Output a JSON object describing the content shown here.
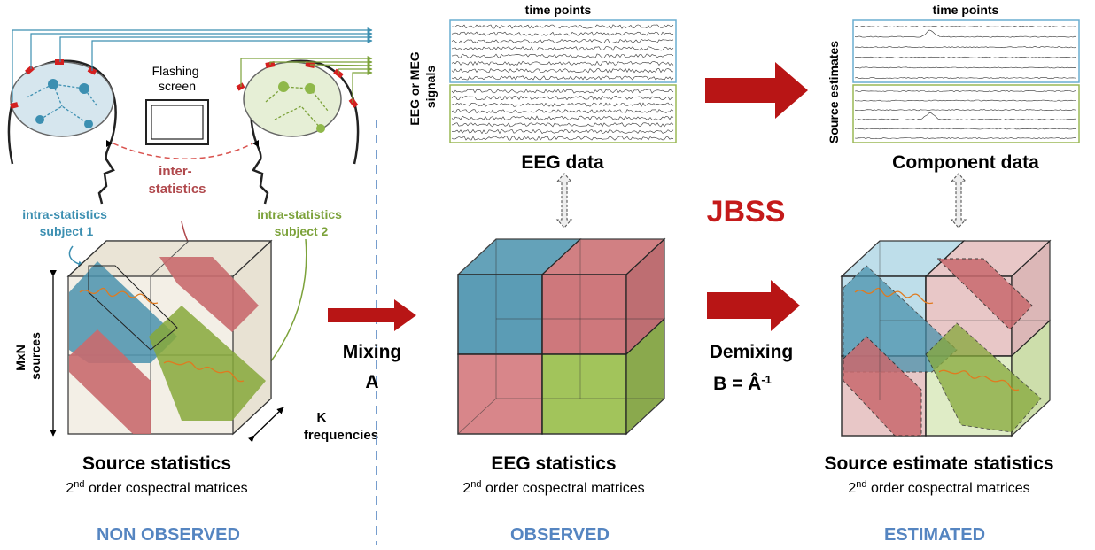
{
  "colors": {
    "blue_face": "#4a92ad",
    "red_face": "#c96a6e",
    "green_face": "#86a83a",
    "blue_text": "#3c8fb1",
    "green_text": "#7ca23a",
    "red_text": "#b0484c",
    "jbss_red": "#c41a1a",
    "section_blue": "#5585c1",
    "arrow_red": "#b81515",
    "signal_box_blue": "#6aaed0",
    "signal_box_green": "#9ab855"
  },
  "left": {
    "flashing_screen": "Flashing\nscreen",
    "inter_statistics": "inter-\nstatistics",
    "intra_subject1": "intra-statistics\nsubject 1",
    "intra_subject2": "intra-statistics\nsubject 2",
    "mxn_sources": "MxN\nsources",
    "k_frequencies": "K\nfrequencies",
    "title": "Source statistics",
    "sub_sup": "nd",
    "subtitle": " order cospectral matrices",
    "section": "NON OBSERVED"
  },
  "middle": {
    "time_points": "time points",
    "signals_label": "EEG or MEG\nsignals",
    "data_title": "EEG data",
    "mixing": "Mixing",
    "mixing_symbol": "A",
    "title": "EEG statistics",
    "sub_sup": "nd",
    "subtitle": " order cospectral matrices",
    "section": "OBSERVED"
  },
  "jbss": "JBSS",
  "right": {
    "time_points": "time points",
    "source_estimates": "Source estimates",
    "data_title": "Component data",
    "demixing": "Demixing",
    "demixing_formula": "B = Â",
    "demixing_sup": "-1",
    "title": "Source estimate statistics",
    "sub_sup": "nd",
    "subtitle": " order cospectral matrices",
    "section": "ESTIMATED"
  }
}
